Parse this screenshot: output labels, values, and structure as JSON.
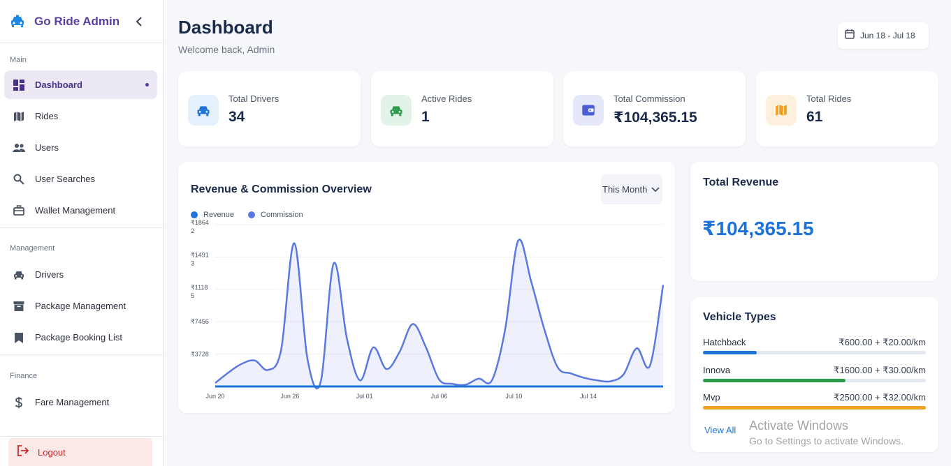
{
  "brand": {
    "title": "Go Ride Admin",
    "accent": "#5b3fa0"
  },
  "sidebar": {
    "sections": [
      {
        "label": "Main",
        "items": [
          {
            "label": "Dashboard",
            "icon": "dashboard-icon",
            "active": true
          },
          {
            "label": "Rides",
            "icon": "map-icon"
          },
          {
            "label": "Users",
            "icon": "users-icon"
          },
          {
            "label": "User Searches",
            "icon": "search-icon"
          },
          {
            "label": "Wallet Management",
            "icon": "briefcase-icon"
          }
        ]
      },
      {
        "label": "Management",
        "items": [
          {
            "label": "Drivers",
            "icon": "car-icon"
          },
          {
            "label": "Package Management",
            "icon": "archive-icon"
          },
          {
            "label": "Package Booking List",
            "icon": "bookmark-icon"
          }
        ]
      },
      {
        "label": "Finance",
        "items": [
          {
            "label": "Fare Management",
            "icon": "dollar-icon"
          }
        ]
      }
    ],
    "logout": "Logout"
  },
  "header": {
    "title": "Dashboard",
    "subtitle": "Welcome back, Admin",
    "date_range": "Jun 18 - Jul 18"
  },
  "stats": [
    {
      "label": "Total Drivers",
      "value": "34",
      "icon": "car-icon",
      "color": "#1e73d8",
      "bg": "#e4f0fc"
    },
    {
      "label": "Active Rides",
      "value": "1",
      "icon": "car-icon",
      "color": "#2e9a4c",
      "bg": "#e4f3e8"
    },
    {
      "label": "Total Commission",
      "value": "₹104,365.15",
      "icon": "wallet-icon",
      "color": "#4a5fd6",
      "bg": "#e5e8f8"
    },
    {
      "label": "Total Rides",
      "value": "61",
      "icon": "map-icon",
      "color": "#f0a020",
      "bg": "#fdf0dc"
    }
  ],
  "chart": {
    "title": "Revenue & Commission Overview",
    "period": "This Month",
    "legend": [
      {
        "name": "Revenue",
        "color": "#1e73d8"
      },
      {
        "name": "Commission",
        "color": "#5a78e0"
      }
    ]
  },
  "chart_data": {
    "type": "area",
    "ylim": [
      0,
      18642
    ],
    "y_ticks": [
      {
        "value": 18642,
        "label": "₹1864\n2"
      },
      {
        "value": 14913,
        "label": "₹1491\n3"
      },
      {
        "value": 11185,
        "label": "₹1118\n5"
      },
      {
        "value": 7456,
        "label": "₹7456"
      },
      {
        "value": 3728,
        "label": "₹3728"
      }
    ],
    "x_ticks": [
      "Jun 20",
      "Jun 26",
      "Jul 01",
      "Jul 06",
      "Jul 10",
      "Jul 14"
    ],
    "x_tick_index": [
      0,
      6,
      12,
      18,
      24,
      30
    ],
    "series": [
      {
        "name": "Revenue",
        "values": [
          0,
          0,
          0,
          0,
          0,
          0,
          0,
          0,
          0,
          0,
          0,
          0,
          0,
          0,
          0,
          0,
          0,
          0,
          0,
          0,
          0,
          0,
          0,
          0,
          0,
          0,
          0,
          0,
          0,
          0,
          0,
          0,
          0,
          0,
          0,
          0,
          0
        ]
      },
      {
        "name": "Commission",
        "values": [
          400,
          1600,
          2600,
          3000,
          1900,
          4200,
          16500,
          3200,
          500,
          14200,
          5500,
          700,
          4500,
          2000,
          4000,
          7200,
          4500,
          800,
          300,
          200,
          900,
          700,
          6500,
          16800,
          12000,
          6500,
          2200,
          1500,
          1000,
          700,
          600,
          1400,
          4400,
          2400,
          11700,
          0,
          0
        ]
      }
    ]
  },
  "revenue": {
    "title": "Total Revenue",
    "value": "₹104,365.15"
  },
  "vehicles": {
    "title": "Vehicle Types",
    "items": [
      {
        "name": "Hatchback",
        "price": "₹600.00 + ₹20.00/km",
        "fill": 0.24,
        "color": "#1e73d8"
      },
      {
        "name": "Innova",
        "price": "₹1600.00 + ₹30.00/km",
        "fill": 0.64,
        "color": "#2e9a4c"
      },
      {
        "name": "Mvp",
        "price": "₹2500.00 + ₹32.00/km",
        "fill": 1.0,
        "color": "#f0a020"
      }
    ],
    "view_all": "View All"
  },
  "watermark": {
    "line1": "Activate Windows",
    "line2": "Go to Settings to activate Windows."
  }
}
